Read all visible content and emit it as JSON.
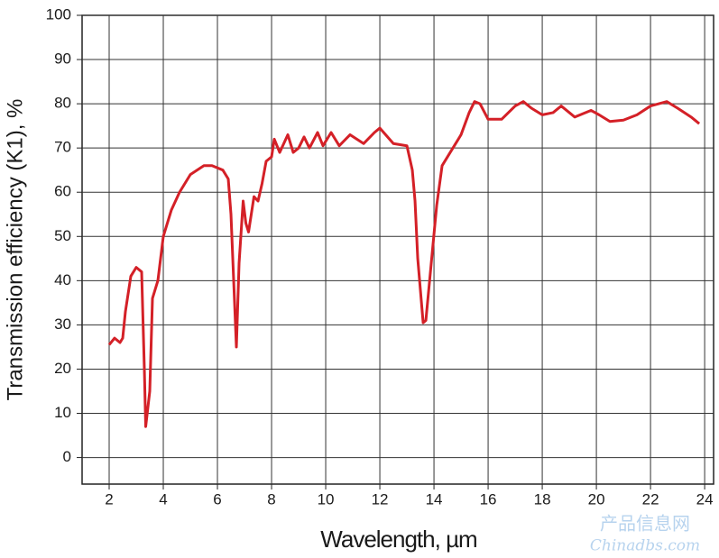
{
  "chart_data": {
    "type": "line",
    "x_label": "Wavelength, µm",
    "y_label": "Transmission efficiency (K1), %",
    "watermark": [
      "产品信息网",
      "Chinadbs.com"
    ],
    "xlim": [
      1,
      24.33
    ],
    "ylim": [
      -6,
      100
    ],
    "xticks": [
      2,
      4,
      6,
      8,
      10,
      12,
      14,
      16,
      18,
      20,
      22,
      24
    ],
    "yticks": [
      0,
      10,
      20,
      30,
      40,
      50,
      60,
      70,
      80,
      90,
      100
    ],
    "grid": true,
    "x": [
      2,
      2.2,
      2.4,
      2.5,
      2.6,
      2.8,
      3.0,
      3.2,
      3.3,
      3.35,
      3.5,
      3.6,
      3.8,
      4.0,
      4.3,
      4.6,
      5.0,
      5.5,
      5.8,
      6.2,
      6.4,
      6.5,
      6.6,
      6.7,
      6.8,
      6.95,
      7.05,
      7.15,
      7.35,
      7.5,
      7.65,
      7.8,
      8.0,
      8.1,
      8.3,
      8.6,
      8.8,
      9.0,
      9.2,
      9.4,
      9.7,
      9.9,
      10.2,
      10.5,
      10.9,
      11.4,
      11.8,
      12.0,
      12.5,
      13.0,
      13.2,
      13.3,
      13.4,
      13.6,
      13.7,
      13.9,
      14.1,
      14.3,
      14.6,
      15.0,
      15.3,
      15.5,
      15.7,
      16.0,
      16.5,
      17.0,
      17.3,
      17.6,
      18.0,
      18.4,
      18.7,
      19.2,
      19.8,
      20.1,
      20.5,
      21.0,
      21.5,
      22.0,
      22.6,
      23.0,
      23.5,
      23.8
    ],
    "series": [
      {
        "color": "#d42027",
        "values": [
          25.5,
          27,
          26,
          27,
          33,
          41,
          43,
          42,
          20,
          7,
          15,
          36,
          40,
          50,
          56,
          60,
          64,
          66,
          66,
          65,
          63,
          55,
          40,
          25,
          44,
          58,
          53,
          51,
          59,
          58,
          62,
          67,
          68,
          72,
          69,
          73,
          69,
          70,
          72.5,
          70,
          73.5,
          70.5,
          73.5,
          70.5,
          73,
          71,
          73.5,
          74.5,
          71,
          70.5,
          65,
          58,
          45,
          30.5,
          31,
          44,
          57,
          66,
          69,
          73,
          78,
          80.5,
          80,
          76.5,
          76.5,
          79.5,
          80.5,
          79,
          77.5,
          78,
          79.5,
          77,
          78.5,
          77.5,
          76,
          76.3,
          77.5,
          79.5,
          80.5,
          79,
          77,
          75.5
        ]
      }
    ]
  }
}
